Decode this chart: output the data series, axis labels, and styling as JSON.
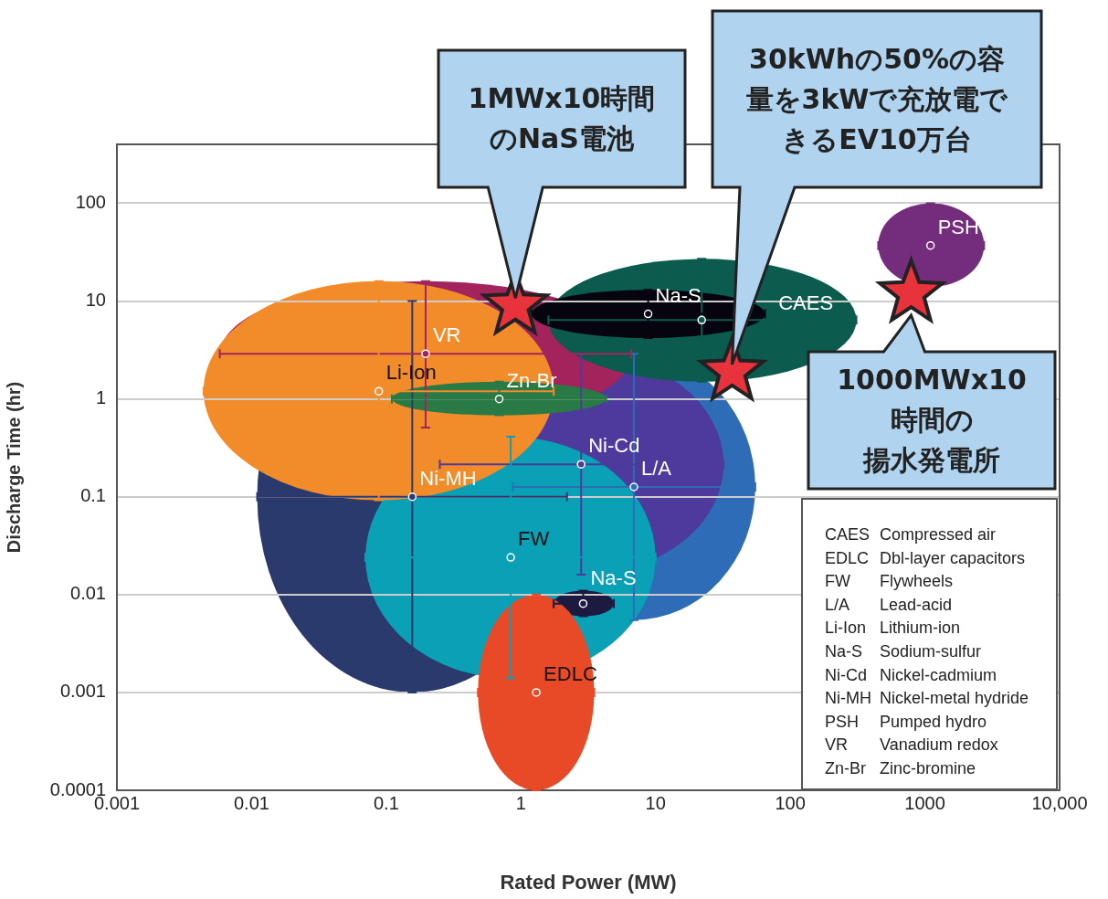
{
  "chart_data": {
    "type": "scatter",
    "xlabel": "Rated Power (MW)",
    "ylabel": "Discharge Time (hr)",
    "log": "xy",
    "grid": "y",
    "xlim": [
      0.001,
      10000
    ],
    "xticks": [
      0.001,
      0.01,
      0.1,
      1,
      10,
      100,
      1000,
      {
        "value": 10000,
        "label": "10,000"
      }
    ],
    "ylim": [
      0.0001,
      400
    ],
    "yticks": [
      0.0001,
      0.001,
      0.01,
      0.1,
      1,
      10,
      100
    ],
    "series": [
      {
        "name": "Ni-MH",
        "color": "#2b3a6c",
        "x": [
          0.156
        ],
        "values": [
          0.1
        ],
        "xerrors": [
          [
            0.011,
            2.2
          ]
        ],
        "errors": [
          [
            0.001,
            10
          ]
        ]
      },
      {
        "name": "L/A",
        "color": "#2e6cb8",
        "x": [
          6.9
        ],
        "values": [
          0.126
        ],
        "xerrors": [
          [
            0.87,
            55
          ]
        ],
        "errors": [
          [
            0.0055,
            2.9
          ]
        ]
      },
      {
        "name": "Ni-Cd",
        "color": "#4e3a9c",
        "x": [
          2.8
        ],
        "values": [
          0.215
        ],
        "xerrors": [
          [
            0.25,
            32
          ]
        ],
        "errors": [
          [
            0.016,
            2.9
          ]
        ]
      },
      {
        "name": "FW",
        "color": "#0aa0b5",
        "x": [
          0.84
        ],
        "values": [
          0.024
        ],
        "xerrors": [
          [
            0.07,
            10
          ]
        ],
        "errors": [
          [
            0.0014,
            0.41
          ]
        ]
      },
      {
        "name": "Na-S",
        "color": "#1c1a40",
        "x": [
          2.9
        ],
        "values": [
          0.0081
        ],
        "xerrors": [
          [
            1.75,
            4.9
          ]
        ],
        "errors": [
          [
            0.006,
            0.011
          ]
        ]
      },
      {
        "name": "EDLC",
        "color": "#e84a27",
        "x": [
          1.3
        ],
        "values": [
          0.001
        ],
        "xerrors": [
          [
            0.48,
            3.5
          ]
        ],
        "errors": [
          [
            0.0001,
            0.01
          ]
        ]
      },
      {
        "name": "VR",
        "color": "#a3245c",
        "x": [
          0.196
        ],
        "values": [
          2.9
        ],
        "xerrors": [
          [
            0.0058,
            6.6
          ]
        ],
        "errors": [
          [
            0.51,
            16
          ]
        ]
      },
      {
        "name": "Li-Ion",
        "color": "#f28c2a",
        "x": [
          0.088
        ],
        "values": [
          1.2
        ],
        "xerrors": [
          [
            0.0044,
            1.75
          ]
        ],
        "errors": [
          [
            0.092,
            16
          ]
        ]
      },
      {
        "name": "Zn-Br",
        "color": "#2a7a46",
        "x": [
          0.69
        ],
        "values": [
          1.0
        ],
        "xerrors": [
          [
            0.11,
            4.3
          ]
        ],
        "errors": [
          [
            0.68,
            1.5
          ]
        ]
      },
      {
        "name": "CAES",
        "color": "#0b5c4e",
        "x": [
          22
        ],
        "values": [
          6.4
        ],
        "xerrors": [
          [
            1.6,
            310
          ]
        ],
        "errors": [
          [
            1.5,
            27
          ]
        ]
      },
      {
        "name": "Na-S",
        "color": "#06050f",
        "x": [
          8.8
        ],
        "values": [
          7.4
        ],
        "xerrors": [
          [
            1.2,
            65
          ]
        ],
        "errors": [
          [
            4.2,
            13
          ]
        ]
      },
      {
        "name": "PSH",
        "color": "#742c7c",
        "x": [
          1100
        ],
        "values": [
          37
        ],
        "xerrors": [
          [
            450,
            2750
          ]
        ],
        "errors": [
          [
            14,
            100
          ]
        ]
      },
      {
        "color": "#e8323c",
        "marker": "star",
        "x": [
          0.91,
          37,
          790
        ],
        "values": [
          9,
          1.9,
          12
        ]
      }
    ],
    "annotations": [
      "1MWx10時間のNaS電池",
      "30kWhの50%の容量を3kWで充放電できるEV10万台",
      "1000MWx10時間の揚水発電所",
      "CAES Compressed air",
      "EDLC Dbl-layer capacitors",
      "FW Flywheels",
      "L/A Lead-acid",
      "Li-Ion Lithium-ion",
      "Na-S Sodium-sulfur",
      "Ni-Cd Nickel-cadmium",
      "Ni-MH Nickel-metal hydride",
      "PSH Pumped hydro",
      "VR Vanadium redox",
      "Zn-Br Zinc-bromine"
    ]
  }
}
